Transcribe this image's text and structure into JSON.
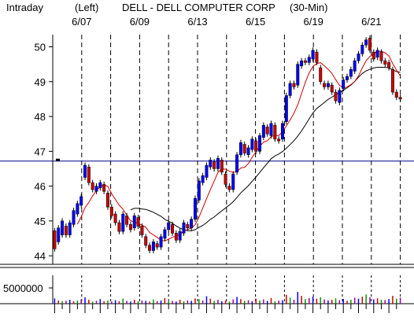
{
  "header": {
    "period": "Intraday",
    "axis_side": "(Left)",
    "title": "DELL - DELL COMPUTER CORP",
    "interval": "(30-Min)"
  },
  "colors": {
    "up_candle": "#0000ff",
    "down_candle": "#cc0000",
    "ma_short": "#cc0000",
    "ma_long": "#000000",
    "reference_line": "#000080",
    "background": "#ffffff"
  },
  "chart_data": {
    "type": "candlestick",
    "title": "DELL - DELL COMPUTER CORP",
    "date_labels": [
      "6/07",
      "6/09",
      "6/13",
      "6/15",
      "6/19",
      "6/21"
    ],
    "y_ticks": [
      "44",
      "45",
      "46",
      "47",
      "48",
      "49",
      "50"
    ],
    "ylim": [
      43.8,
      50.35
    ],
    "reference_price": 46.72,
    "volume_tick_label": "5000000",
    "volume_ylim": [
      0,
      8000000
    ],
    "grid": "vertical dashed lines at each trading day",
    "candles": [
      [
        44.72,
        44.2
      ],
      [
        44.4,
        44.8
      ],
      [
        44.6,
        45.0
      ],
      [
        44.85,
        44.6
      ],
      [
        44.6,
        44.95
      ],
      [
        44.9,
        45.3
      ],
      [
        45.2,
        45.5
      ],
      [
        45.45,
        45.7
      ],
      [
        46.25,
        46.6
      ],
      [
        46.55,
        46.1
      ],
      [
        46.1,
        45.9
      ],
      [
        45.85,
        46.0
      ],
      [
        45.95,
        46.1
      ],
      [
        46.05,
        45.85
      ],
      [
        45.8,
        45.4
      ],
      [
        45.4,
        45.15
      ],
      [
        45.2,
        44.95
      ],
      [
        44.95,
        44.7
      ],
      [
        44.7,
        45.2
      ],
      [
        45.15,
        44.9
      ],
      [
        44.9,
        44.75
      ],
      [
        44.8,
        45.15
      ],
      [
        45.1,
        44.85
      ],
      [
        44.85,
        44.6
      ],
      [
        44.55,
        44.3
      ],
      [
        44.3,
        44.15
      ],
      [
        44.15,
        44.4
      ],
      [
        44.35,
        44.25
      ],
      [
        44.25,
        44.55
      ],
      [
        44.5,
        44.75
      ],
      [
        44.75,
        44.95
      ],
      [
        44.9,
        44.65
      ],
      [
        44.65,
        44.45
      ],
      [
        44.45,
        44.7
      ],
      [
        44.65,
        44.95
      ],
      [
        44.9,
        44.8
      ],
      [
        44.8,
        45.05
      ],
      [
        45.05,
        45.65
      ],
      [
        45.6,
        46.15
      ],
      [
        46.1,
        46.3
      ],
      [
        46.25,
        46.6
      ],
      [
        46.55,
        46.75
      ],
      [
        46.7,
        46.5
      ],
      [
        46.5,
        46.8
      ],
      [
        46.75,
        46.4
      ],
      [
        46.35,
        46.05
      ],
      [
        46.0,
        45.9
      ],
      [
        45.9,
        46.35
      ],
      [
        46.4,
        46.9
      ],
      [
        46.9,
        47.25
      ],
      [
        47.2,
        46.95
      ],
      [
        46.9,
        47.1
      ],
      [
        47.05,
        47.35
      ],
      [
        47.3,
        47.0
      ],
      [
        47.0,
        47.45
      ],
      [
        47.4,
        47.75
      ],
      [
        47.7,
        47.5
      ],
      [
        47.45,
        47.8
      ],
      [
        47.75,
        47.35
      ],
      [
        47.35,
        47.3
      ],
      [
        47.35,
        47.8
      ],
      [
        47.85,
        48.6
      ],
      [
        48.6,
        48.95
      ],
      [
        48.95,
        48.85
      ],
      [
        48.9,
        49.5
      ],
      [
        49.45,
        49.6
      ],
      [
        49.6,
        49.55
      ],
      [
        49.55,
        49.7
      ],
      [
        49.65,
        49.9
      ],
      [
        49.85,
        49.55
      ],
      [
        49.4,
        49.0
      ],
      [
        48.95,
        48.85
      ],
      [
        48.85,
        48.95
      ],
      [
        48.9,
        48.7
      ],
      [
        48.7,
        48.45
      ],
      [
        48.4,
        48.75
      ],
      [
        48.8,
        49.05
      ],
      [
        49.05,
        49.15
      ],
      [
        49.15,
        49.35
      ],
      [
        49.3,
        49.6
      ],
      [
        49.6,
        49.8
      ],
      [
        49.8,
        50.05
      ],
      [
        50.05,
        50.2
      ],
      [
        50.25,
        49.9
      ],
      [
        49.85,
        49.65
      ],
      [
        49.7,
        49.9
      ],
      [
        49.85,
        49.6
      ],
      [
        49.6,
        49.5
      ],
      [
        49.55,
        49.4
      ],
      [
        49.35,
        48.7
      ],
      [
        48.7,
        48.55
      ],
      [
        48.55,
        48.5
      ]
    ],
    "volume": [
      1500000,
      900000,
      700000,
      800000,
      1100000,
      700000,
      900000,
      1200000,
      1800000,
      1100000,
      600000,
      800000,
      1300000,
      700000,
      900000,
      600000,
      1000000,
      700000,
      1400000,
      800000,
      600000,
      1100000,
      700000,
      900000,
      800000,
      600000,
      1200000,
      700000,
      900000,
      1600000,
      700000,
      800000,
      600000,
      1100000,
      700000,
      900000,
      800000,
      1500000,
      1300000,
      900000,
      2100000,
      1400000,
      800000,
      1100000,
      700000,
      900000,
      600000,
      1200000,
      1900000,
      1300000,
      800000,
      1000000,
      700000,
      1400000,
      900000,
      1200000,
      800000,
      1600000,
      700000,
      900000,
      1000000,
      2500000,
      1700000,
      1100000,
      3300000,
      2200000,
      1300000,
      1600000,
      2000000,
      1400000,
      1800000,
      1200000,
      900000,
      1100000,
      1500000,
      1000000,
      1300000,
      800000,
      1100000,
      1700000,
      1400000,
      2000000,
      2600000,
      1800000,
      1200000,
      1500000,
      1100000,
      1000000,
      1300000,
      2200000,
      1400000,
      1700000
    ]
  }
}
